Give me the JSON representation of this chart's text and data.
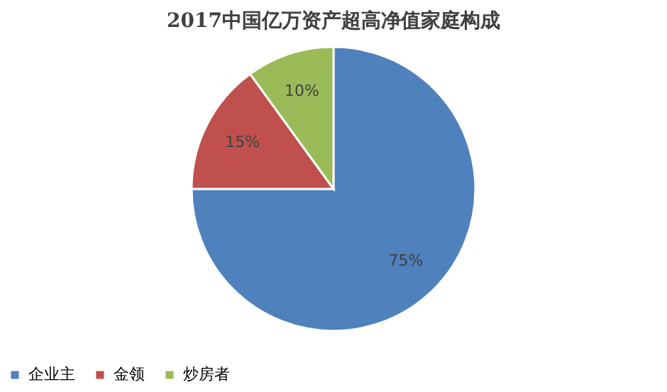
{
  "chart_data": {
    "type": "pie",
    "title": "2017中国亿万资产超高净值家庭构成",
    "categories": [
      "企业主",
      "金领",
      "炒房者"
    ],
    "values": [
      75,
      15,
      10
    ],
    "colors": [
      "#4f81bd",
      "#c0504d",
      "#9bbb59"
    ],
    "value_labels": [
      "75%",
      "15%",
      "10%"
    ],
    "legend": "bottom"
  }
}
